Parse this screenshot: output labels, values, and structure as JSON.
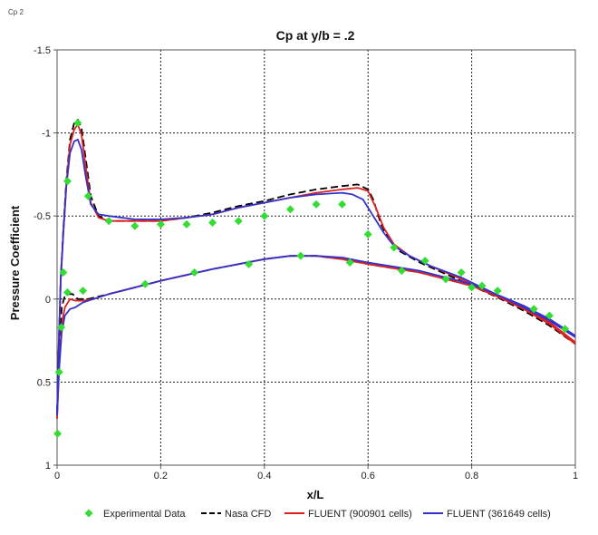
{
  "window": {
    "tab_label": "Cp 2"
  },
  "chart_data": {
    "type": "line",
    "title": "Cp at y/b = .2",
    "xlabel": "x/L",
    "ylabel": "Pressure Coefficient",
    "xlim": [
      0,
      1
    ],
    "ylim": [
      -1.5,
      1
    ],
    "y_inverted": true,
    "x_ticks": [
      0,
      0.2,
      0.4,
      0.6,
      0.8,
      1
    ],
    "x_tick_labels": [
      "0",
      "0.2",
      "0.4",
      "0.6",
      "0.8",
      "1"
    ],
    "y_ticks": [
      -1.5,
      -1,
      -0.5,
      0,
      0.5,
      1
    ],
    "y_tick_labels": [
      "-1.5",
      "-1",
      "-0.5",
      "0",
      "0.5",
      "1"
    ],
    "grid": true,
    "legend_position": "bottom",
    "series": [
      {
        "name": "Experimental Data",
        "kind": "scatter",
        "color": "#33dd33",
        "marker": "diamond",
        "points": [
          [
            0.001,
            0.81
          ],
          [
            0.004,
            0.44
          ],
          [
            0.008,
            0.17
          ],
          [
            0.012,
            -0.16
          ],
          [
            0.02,
            -0.71
          ],
          [
            0.04,
            -1.06
          ],
          [
            0.06,
            -0.62
          ],
          [
            0.1,
            -0.47
          ],
          [
            0.15,
            -0.44
          ],
          [
            0.2,
            -0.45
          ],
          [
            0.25,
            -0.45
          ],
          [
            0.3,
            -0.46
          ],
          [
            0.35,
            -0.47
          ],
          [
            0.4,
            -0.5
          ],
          [
            0.45,
            -0.54
          ],
          [
            0.5,
            -0.57
          ],
          [
            0.55,
            -0.57
          ],
          [
            0.6,
            -0.39
          ],
          [
            0.65,
            -0.31
          ],
          [
            0.71,
            -0.23
          ],
          [
            0.78,
            -0.16
          ],
          [
            0.82,
            -0.08
          ],
          [
            0.85,
            -0.05
          ],
          [
            0.92,
            0.06
          ],
          [
            0.95,
            0.1
          ],
          [
            0.98,
            0.18
          ],
          [
            0.02,
            -0.04
          ],
          [
            0.05,
            -0.05
          ],
          [
            0.17,
            -0.09
          ],
          [
            0.265,
            -0.16
          ],
          [
            0.37,
            -0.21
          ],
          [
            0.47,
            -0.26
          ],
          [
            0.565,
            -0.22
          ],
          [
            0.665,
            -0.17
          ],
          [
            0.75,
            -0.12
          ],
          [
            0.8,
            -0.07
          ]
        ]
      },
      {
        "name": "Nasa CFD",
        "kind": "line",
        "color": "#000000",
        "dash": "8,4",
        "upper": [
          [
            0,
            0.68
          ],
          [
            0.003,
            0.3
          ],
          [
            0.007,
            -0.12
          ],
          [
            0.012,
            -0.42
          ],
          [
            0.018,
            -0.72
          ],
          [
            0.025,
            -0.96
          ],
          [
            0.033,
            -1.06
          ],
          [
            0.04,
            -1.08
          ],
          [
            0.047,
            -1.03
          ],
          [
            0.055,
            -0.85
          ],
          [
            0.065,
            -0.62
          ],
          [
            0.08,
            -0.5
          ],
          [
            0.1,
            -0.47
          ],
          [
            0.15,
            -0.47
          ],
          [
            0.2,
            -0.47
          ],
          [
            0.25,
            -0.49
          ],
          [
            0.3,
            -0.52
          ],
          [
            0.35,
            -0.56
          ],
          [
            0.4,
            -0.59
          ],
          [
            0.45,
            -0.63
          ],
          [
            0.5,
            -0.66
          ],
          [
            0.55,
            -0.68
          ],
          [
            0.58,
            -0.69
          ],
          [
            0.6,
            -0.66
          ],
          [
            0.61,
            -0.6
          ],
          [
            0.625,
            -0.45
          ],
          [
            0.64,
            -0.36
          ],
          [
            0.66,
            -0.29
          ],
          [
            0.7,
            -0.22
          ],
          [
            0.75,
            -0.15
          ],
          [
            0.8,
            -0.08
          ],
          [
            0.85,
            -0.01
          ],
          [
            0.9,
            0.07
          ],
          [
            0.95,
            0.16
          ],
          [
            1.0,
            0.27
          ]
        ],
        "lower": [
          [
            0,
            0.68
          ],
          [
            0.004,
            0.35
          ],
          [
            0.009,
            0.05
          ],
          [
            0.015,
            -0.02
          ],
          [
            0.02,
            -0.03
          ],
          [
            0.03,
            -0.03
          ],
          [
            0.04,
            0.0
          ],
          [
            0.06,
            0.0
          ],
          [
            0.1,
            -0.03
          ],
          [
            0.15,
            -0.07
          ],
          [
            0.2,
            -0.11
          ],
          [
            0.3,
            -0.18
          ],
          [
            0.4,
            -0.24
          ],
          [
            0.45,
            -0.26
          ],
          [
            0.5,
            -0.26
          ],
          [
            0.55,
            -0.24
          ],
          [
            0.6,
            -0.21
          ],
          [
            0.7,
            -0.16
          ],
          [
            0.8,
            -0.08
          ],
          [
            0.9,
            0.05
          ],
          [
            0.95,
            0.14
          ],
          [
            1.0,
            0.27
          ]
        ]
      },
      {
        "name": "FLUENT (900901 cells)",
        "kind": "line",
        "color": "#e02020",
        "upper": [
          [
            0,
            0.72
          ],
          [
            0.003,
            0.32
          ],
          [
            0.007,
            -0.1
          ],
          [
            0.012,
            -0.4
          ],
          [
            0.018,
            -0.7
          ],
          [
            0.025,
            -0.93
          ],
          [
            0.033,
            -1.02
          ],
          [
            0.04,
            -1.05
          ],
          [
            0.047,
            -0.99
          ],
          [
            0.055,
            -0.8
          ],
          [
            0.065,
            -0.58
          ],
          [
            0.08,
            -0.49
          ],
          [
            0.1,
            -0.47
          ],
          [
            0.15,
            -0.47
          ],
          [
            0.2,
            -0.47
          ],
          [
            0.25,
            -0.49
          ],
          [
            0.3,
            -0.51
          ],
          [
            0.35,
            -0.55
          ],
          [
            0.4,
            -0.58
          ],
          [
            0.45,
            -0.61
          ],
          [
            0.5,
            -0.64
          ],
          [
            0.55,
            -0.66
          ],
          [
            0.58,
            -0.67
          ],
          [
            0.6,
            -0.65
          ],
          [
            0.615,
            -0.55
          ],
          [
            0.63,
            -0.43
          ],
          [
            0.65,
            -0.33
          ],
          [
            0.68,
            -0.26
          ],
          [
            0.72,
            -0.2
          ],
          [
            0.78,
            -0.12
          ],
          [
            0.84,
            -0.03
          ],
          [
            0.9,
            0.06
          ],
          [
            0.95,
            0.15
          ],
          [
            1.0,
            0.27
          ]
        ],
        "lower": [
          [
            0,
            0.72
          ],
          [
            0.004,
            0.4
          ],
          [
            0.009,
            0.15
          ],
          [
            0.015,
            0.05
          ],
          [
            0.025,
            0.0
          ],
          [
            0.035,
            0.01
          ],
          [
            0.05,
            0.01
          ],
          [
            0.07,
            0.0
          ],
          [
            0.1,
            -0.03
          ],
          [
            0.15,
            -0.07
          ],
          [
            0.2,
            -0.11
          ],
          [
            0.3,
            -0.18
          ],
          [
            0.4,
            -0.24
          ],
          [
            0.45,
            -0.26
          ],
          [
            0.5,
            -0.26
          ],
          [
            0.55,
            -0.24
          ],
          [
            0.6,
            -0.21
          ],
          [
            0.7,
            -0.16
          ],
          [
            0.8,
            -0.08
          ],
          [
            0.9,
            0.05
          ],
          [
            0.95,
            0.14
          ],
          [
            1.0,
            0.26
          ]
        ]
      },
      {
        "name": "FLUENT (361649 cells)",
        "kind": "line",
        "color": "#3333cc",
        "upper": [
          [
            0,
            0.7
          ],
          [
            0.003,
            0.3
          ],
          [
            0.007,
            -0.12
          ],
          [
            0.012,
            -0.4
          ],
          [
            0.018,
            -0.68
          ],
          [
            0.025,
            -0.88
          ],
          [
            0.033,
            -0.95
          ],
          [
            0.04,
            -0.96
          ],
          [
            0.047,
            -0.9
          ],
          [
            0.055,
            -0.74
          ],
          [
            0.065,
            -0.57
          ],
          [
            0.08,
            -0.51
          ],
          [
            0.1,
            -0.5
          ],
          [
            0.15,
            -0.48
          ],
          [
            0.2,
            -0.48
          ],
          [
            0.25,
            -0.49
          ],
          [
            0.3,
            -0.51
          ],
          [
            0.35,
            -0.55
          ],
          [
            0.4,
            -0.58
          ],
          [
            0.45,
            -0.61
          ],
          [
            0.5,
            -0.63
          ],
          [
            0.55,
            -0.64
          ],
          [
            0.57,
            -0.63
          ],
          [
            0.59,
            -0.6
          ],
          [
            0.61,
            -0.5
          ],
          [
            0.63,
            -0.4
          ],
          [
            0.65,
            -0.32
          ],
          [
            0.68,
            -0.26
          ],
          [
            0.72,
            -0.2
          ],
          [
            0.78,
            -0.13
          ],
          [
            0.84,
            -0.04
          ],
          [
            0.9,
            0.05
          ],
          [
            0.95,
            0.13
          ],
          [
            1.0,
            0.23
          ]
        ],
        "lower": [
          [
            0,
            0.7
          ],
          [
            0.004,
            0.42
          ],
          [
            0.009,
            0.2
          ],
          [
            0.015,
            0.1
          ],
          [
            0.025,
            0.06
          ],
          [
            0.035,
            0.05
          ],
          [
            0.05,
            0.02
          ],
          [
            0.07,
            0.0
          ],
          [
            0.1,
            -0.03
          ],
          [
            0.15,
            -0.07
          ],
          [
            0.2,
            -0.11
          ],
          [
            0.3,
            -0.18
          ],
          [
            0.4,
            -0.24
          ],
          [
            0.45,
            -0.26
          ],
          [
            0.5,
            -0.26
          ],
          [
            0.55,
            -0.25
          ],
          [
            0.6,
            -0.22
          ],
          [
            0.7,
            -0.17
          ],
          [
            0.8,
            -0.09
          ],
          [
            0.9,
            0.04
          ],
          [
            0.95,
            0.12
          ],
          [
            1.0,
            0.22
          ]
        ]
      }
    ]
  }
}
